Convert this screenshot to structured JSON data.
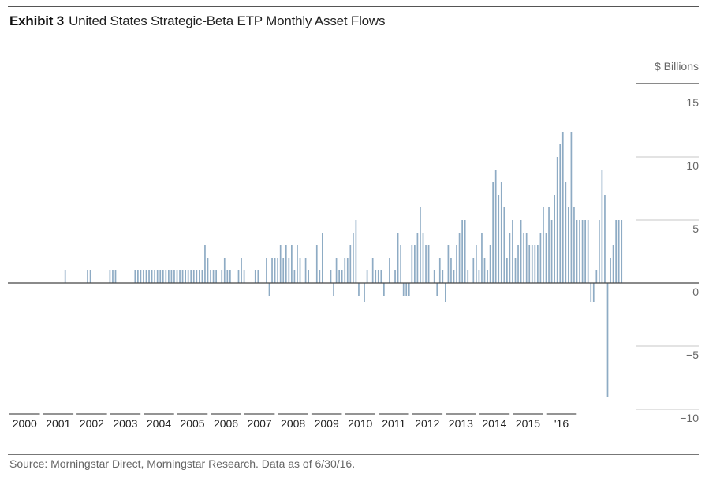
{
  "header": {
    "exhibit": "Exhibit 3",
    "title": "United States Strategic-Beta ETP Monthly Asset Flows"
  },
  "footer": {
    "source": "Source: Morningstar Direct, Morningstar Research. Data as of 6/30/16."
  },
  "colors": {
    "bar": "#8eabc4",
    "gridline": "#c7c7c7",
    "baseline": "#444444",
    "axis": "#555555"
  },
  "chart_data": {
    "type": "bar",
    "unit_label": "$ Billions",
    "ylim": [
      -10,
      15
    ],
    "yticks": [
      15,
      10,
      5,
      0,
      -5,
      -10
    ],
    "ytick_labels": [
      "15",
      "10",
      "5",
      "0",
      "−5",
      "−10"
    ],
    "grid": true,
    "x_start": "2000-01",
    "x_end": "2016-06",
    "year_labels": [
      "2000",
      "2001",
      "2002",
      "2003",
      "2004",
      "2005",
      "2006",
      "2007",
      "2008",
      "2009",
      "2010",
      "2011",
      "2012",
      "2013",
      "2014",
      "2015",
      "'16"
    ],
    "series": [
      {
        "values": [
          0,
          0,
          0,
          0,
          0,
          0,
          0,
          0,
          0,
          0,
          0,
          0,
          0,
          0,
          0,
          0,
          0,
          0,
          0,
          0,
          1,
          0,
          0,
          0,
          0,
          0,
          0,
          0,
          1,
          1,
          0,
          0,
          0,
          0,
          0,
          0,
          1,
          1,
          1,
          0,
          0,
          0,
          0,
          0,
          0,
          1,
          1,
          1,
          1,
          1,
          1,
          1,
          1,
          1,
          1,
          1,
          1,
          1,
          1,
          1,
          1,
          1,
          1,
          1,
          1,
          1,
          1,
          1,
          1,
          1,
          3,
          2,
          1,
          1,
          1,
          0,
          1,
          2,
          1,
          1,
          0,
          0,
          1,
          2,
          1,
          0,
          0,
          0,
          1,
          1,
          0,
          0,
          2,
          -1,
          2,
          2,
          2,
          3,
          2,
          3,
          2,
          3,
          1,
          3,
          2,
          0,
          2,
          1,
          0,
          0,
          3,
          1,
          4,
          0,
          0,
          1,
          -1,
          2,
          1,
          1,
          2,
          2,
          3,
          4,
          5,
          -1,
          0,
          -1.5,
          1,
          0,
          2,
          1,
          1,
          1,
          -1,
          0,
          2,
          0,
          1,
          4,
          3,
          -1,
          -1,
          -1,
          3,
          3,
          4,
          6,
          4,
          3,
          3,
          0,
          1,
          -1,
          2,
          1,
          -1.5,
          3,
          2,
          1,
          3,
          4,
          5,
          5,
          1,
          0,
          2,
          3,
          1,
          4,
          2,
          1,
          3,
          8,
          9,
          7,
          8,
          6,
          2,
          4,
          5,
          2,
          3,
          5,
          4,
          4,
          3,
          3,
          3,
          3,
          4,
          6,
          4,
          6,
          5,
          7,
          10,
          11,
          12,
          8,
          6,
          12,
          6,
          5,
          5,
          5,
          5,
          5,
          -1.5,
          -1.5,
          1,
          5,
          9,
          7,
          -9,
          2,
          3,
          5,
          5,
          5
        ]
      }
    ]
  }
}
